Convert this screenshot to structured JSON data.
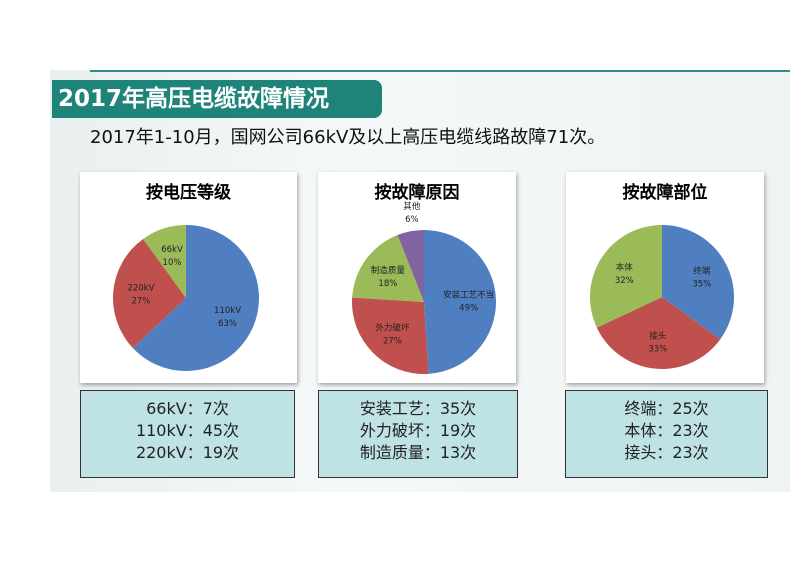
{
  "title": "2017年高压电缆故障情况",
  "subtitle": "2017年1-10月，国网公司66kV及以上高压电缆线路故障71次。",
  "chart_data": [
    {
      "type": "pie",
      "title": "按电压等级",
      "slices": [
        {
          "label": "110kV",
          "percent": 63,
          "color": "#4f7fc0"
        },
        {
          "label": "220kV",
          "percent": 27,
          "color": "#c0504d"
        },
        {
          "label": "66kV",
          "percent": 10,
          "color": "#9bbb59"
        }
      ]
    },
    {
      "type": "pie",
      "title": "按故障原因",
      "slices": [
        {
          "label": "安装工艺不当",
          "percent": 49,
          "color": "#4f7fc0"
        },
        {
          "label": "外力破坏",
          "percent": 27,
          "color": "#c0504d"
        },
        {
          "label": "制造质量",
          "percent": 18,
          "color": "#9bbb59"
        },
        {
          "label": "其他",
          "percent": 6,
          "color": "#8064a2"
        }
      ]
    },
    {
      "type": "pie",
      "title": "按故障部位",
      "slices": [
        {
          "label": "终端",
          "percent": 35,
          "color": "#4f7fc0"
        },
        {
          "label": "接头",
          "percent": 33,
          "color": "#c0504d"
        },
        {
          "label": "本体",
          "percent": 32,
          "color": "#9bbb59"
        }
      ]
    }
  ],
  "stats": [
    [
      "66kV：7次",
      "110kV：45次",
      "220kV：19次"
    ],
    [
      "安装工艺：35次",
      "外力破坏：19次",
      "制造质量：13次"
    ],
    [
      "终端：25次",
      "本体：23次",
      "接头：23次"
    ]
  ]
}
